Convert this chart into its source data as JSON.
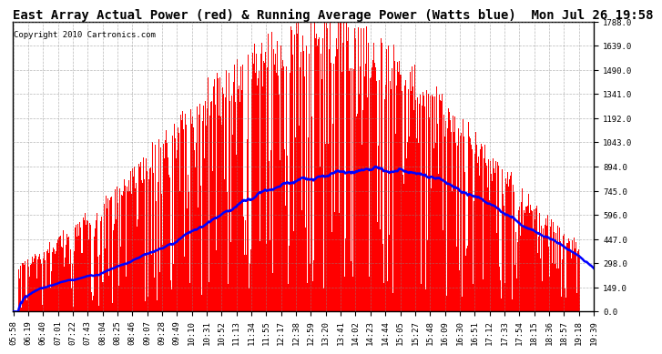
{
  "title": "East Array Actual Power (red) & Running Average Power (Watts blue)  Mon Jul 26 19:58",
  "copyright": "Copyright 2010 Cartronics.com",
  "yticks": [
    0.0,
    149.0,
    298.0,
    447.0,
    596.0,
    745.0,
    894.0,
    1043.0,
    1192.0,
    1341.0,
    1490.0,
    1639.0,
    1788.0
  ],
  "ymax": 1788.0,
  "bar_color": "#FF0000",
  "line_color": "#0000FF",
  "background_color": "#FFFFFF",
  "grid_color": "#888888",
  "title_fontsize": 10,
  "copyright_fontsize": 6.5,
  "tick_fontsize": 6.5,
  "tick_labels": [
    "05:58",
    "06:19",
    "06:40",
    "07:01",
    "07:22",
    "07:43",
    "08:04",
    "08:25",
    "08:46",
    "09:07",
    "09:28",
    "09:49",
    "10:10",
    "10:31",
    "10:52",
    "11:13",
    "11:34",
    "11:55",
    "12:17",
    "12:38",
    "12:59",
    "13:20",
    "13:41",
    "14:02",
    "14:23",
    "14:44",
    "15:05",
    "15:27",
    "15:48",
    "16:09",
    "16:30",
    "16:51",
    "17:12",
    "17:33",
    "17:54",
    "18:15",
    "18:36",
    "18:57",
    "19:18",
    "19:39"
  ]
}
